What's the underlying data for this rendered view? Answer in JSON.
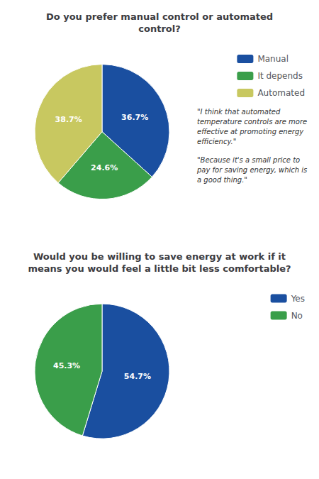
{
  "chart_data": [
    {
      "type": "pie",
      "title": "Do you prefer manual control or automated\ncontrol?",
      "categories": [
        "Manual",
        "It depends",
        "Automated"
      ],
      "values": [
        36.7,
        24.6,
        38.7
      ],
      "value_labels": [
        "36.7%",
        "24.6%",
        "38.7%"
      ],
      "colors": [
        "#1a4fa0",
        "#3a9e4a",
        "#c8c860"
      ],
      "data_labels": true,
      "legend": "right",
      "annotations": [
        "\"I think that automated\ntemperature controls are more\neffective at promoting energy\nefficiency.\"",
        "\"Because it's a small price to\npay for saving energy, which is\na good thing.\""
      ]
    },
    {
      "type": "pie",
      "title": "Would you be willing to save energy at work if it\nmeans you would feel a little bit less comfortable?",
      "categories": [
        "Yes",
        "No"
      ],
      "values": [
        54.7,
        45.3
      ],
      "value_labels": [
        "54.7%",
        "45.3%"
      ],
      "colors": [
        "#1a4fa0",
        "#3a9e4a"
      ],
      "data_labels": true,
      "legend": "right"
    }
  ]
}
